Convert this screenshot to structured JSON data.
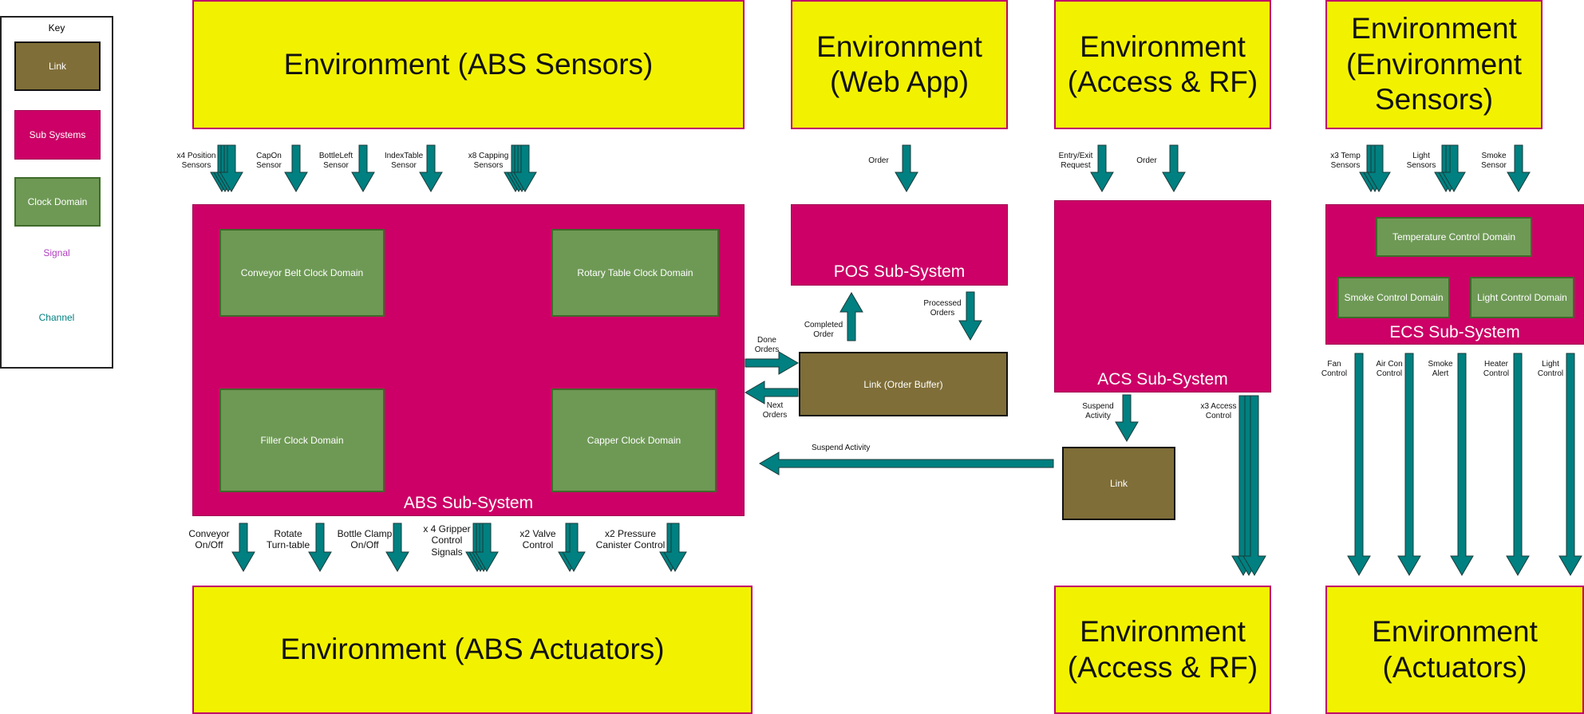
{
  "key": {
    "title": "Key",
    "link": "Link",
    "subsystems": "Sub Systems",
    "clock": "Clock Domain",
    "signal": "Signal",
    "channel": "Channel"
  },
  "env": {
    "abs_sensors": "Environment (ABS Sensors)",
    "web_app": "Environment\n(Web App)",
    "access_rf_top": "Environment\n(Access & RF)",
    "env_sensors": "Environment\n(Environment\nSensors)",
    "abs_actuators": "Environment (ABS Actuators)",
    "access_rf_bottom": "Environment\n(Access & RF)",
    "actuators": "Environment\n(Actuators)"
  },
  "abs": {
    "title": "ABS Sub-System",
    "conveyor": "Conveyor Belt Clock Domain",
    "rotary": "Rotary Table Clock Domain",
    "filler": "Filler Clock Domain",
    "capper": "Capper Clock Domain",
    "inputs": [
      "x4 Position\nSensors",
      "CapOn\nSensor",
      "BottleLeft\nSensor",
      "IndexTable\nSensor",
      "x8 Capping\nSensors"
    ],
    "outputs": [
      "Conveyor\nOn/Off",
      "Rotate\nTurn-table",
      "Bottle Clamp\nOn/Off",
      "x 4 Gripper\nControl\nSignals",
      "x2 Valve\nControl",
      "x2 Pressure\nCanister Control"
    ]
  },
  "pos": {
    "title": "POS Sub-System",
    "order": "Order",
    "completed": "Completed\nOrder",
    "processed": "Processed\nOrders",
    "done": "Done\nOrders",
    "next": "Next\nOrders",
    "link_buffer": "Link (Order Buffer)"
  },
  "acs": {
    "title": "ACS Sub-System",
    "entry": "Entry/Exit\nRequest",
    "order": "Order",
    "suspend_label": "Suspend\nActivity",
    "access_control": "x3 Access\nControl",
    "link": "Link",
    "suspend_activity": "Suspend Activity"
  },
  "ecs": {
    "title": "ECS Sub-System",
    "temp": "Temperature Control Domain",
    "smoke": "Smoke Control Domain",
    "light": "Light Control Domain",
    "inputs": [
      "x3 Temp\nSensors",
      "Light\nSensors",
      "Smoke\nSensor"
    ],
    "outputs": [
      "Fan\nControl",
      "Air Con\nControl",
      "Smoke\nAlert",
      "Heater\nControl",
      "Light\nControl"
    ]
  },
  "colors": {
    "environment": "#f2f200",
    "subsystem": "#cc0066",
    "clock": "#6e9955",
    "link": "#7f6e38",
    "channel": "#008080",
    "signal": "#b040c0"
  }
}
